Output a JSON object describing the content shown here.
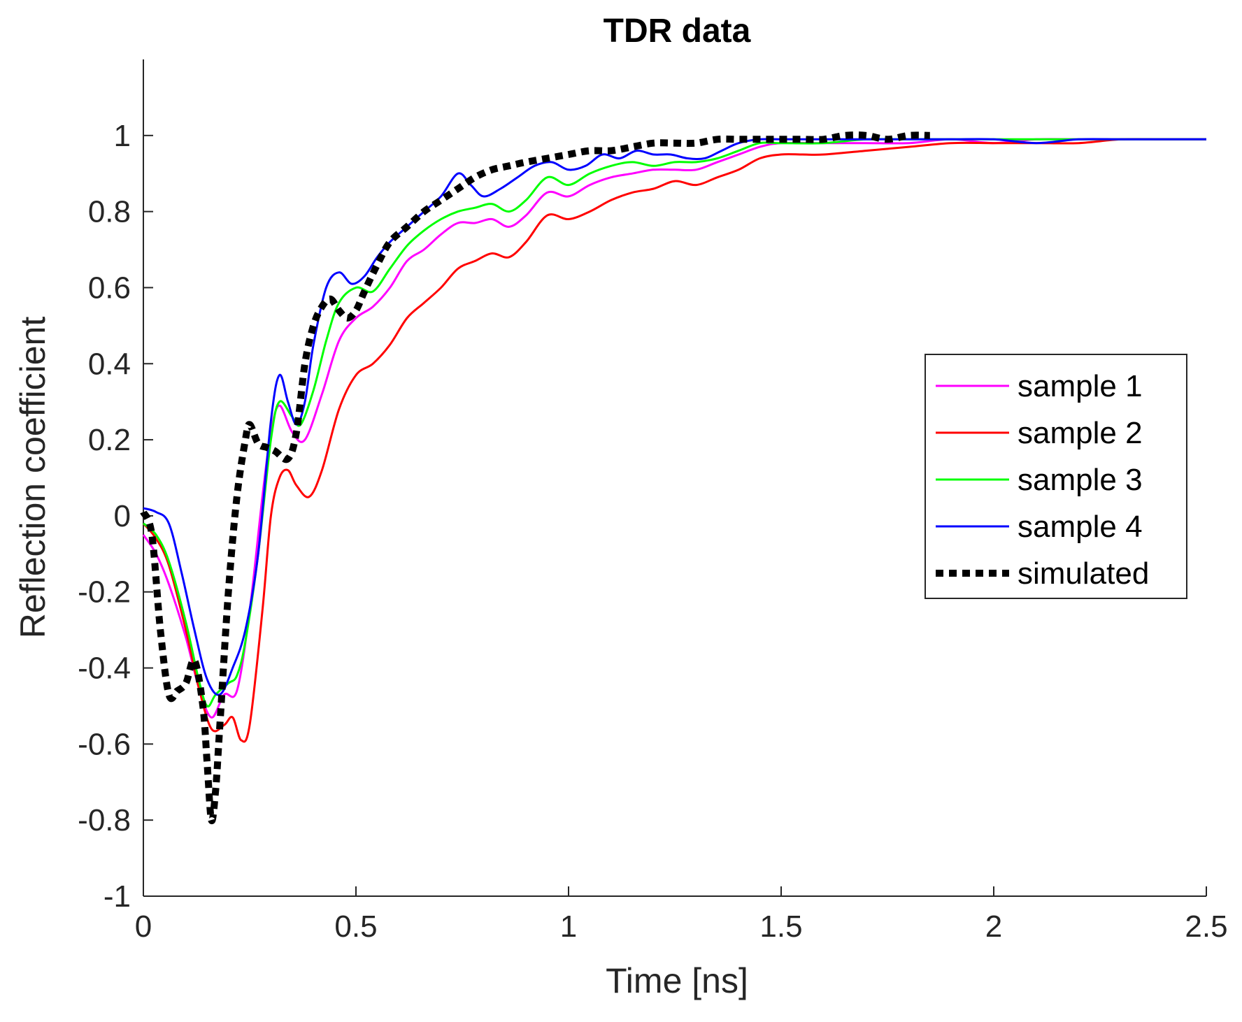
{
  "chart_data": {
    "type": "line",
    "title": "TDR data",
    "xlabel": "Time [ns]",
    "ylabel": "Reflection coefficient",
    "xlim": [
      0,
      2.5
    ],
    "ylim": [
      -1,
      1.2
    ],
    "xticks": [
      0,
      0.5,
      1,
      1.5,
      2,
      2.5
    ],
    "xtick_labels": [
      "0",
      "0.5",
      "1",
      "1.5",
      "2",
      "2.5"
    ],
    "yticks": [
      -1,
      -0.8,
      -0.6,
      -0.4,
      -0.2,
      0,
      0.2,
      0.4,
      0.6,
      0.8,
      1
    ],
    "ytick_labels": [
      "-1",
      "-0.8",
      "-0.6",
      "-0.4",
      "-0.2",
      "0",
      "0.2",
      "0.4",
      "0.6",
      "0.8",
      "1"
    ],
    "grid": false,
    "legend_position": "right",
    "series": [
      {
        "name": "sample 1",
        "color": "#ff00ff",
        "dash": "solid",
        "x": [
          0,
          0.03,
          0.06,
          0.1,
          0.13,
          0.16,
          0.19,
          0.22,
          0.25,
          0.28,
          0.3,
          0.32,
          0.35,
          0.38,
          0.42,
          0.46,
          0.5,
          0.54,
          0.58,
          0.62,
          0.66,
          0.7,
          0.74,
          0.78,
          0.82,
          0.86,
          0.9,
          0.95,
          1.0,
          1.05,
          1.1,
          1.15,
          1.2,
          1.25,
          1.3,
          1.35,
          1.4,
          1.45,
          1.5,
          1.6,
          1.7,
          1.8,
          1.9,
          2.0,
          2.1,
          2.2,
          2.3,
          2.4,
          2.5
        ],
        "y": [
          -0.05,
          -0.1,
          -0.18,
          -0.32,
          -0.45,
          -0.53,
          -0.47,
          -0.46,
          -0.25,
          0.05,
          0.22,
          0.29,
          0.22,
          0.2,
          0.32,
          0.46,
          0.52,
          0.55,
          0.6,
          0.67,
          0.7,
          0.74,
          0.77,
          0.77,
          0.78,
          0.76,
          0.79,
          0.85,
          0.84,
          0.87,
          0.89,
          0.9,
          0.91,
          0.91,
          0.91,
          0.93,
          0.95,
          0.97,
          0.98,
          0.98,
          0.98,
          0.98,
          0.99,
          0.98,
          0.99,
          0.99,
          0.99,
          0.99,
          0.99
        ]
      },
      {
        "name": "sample 2",
        "color": "#ff0000",
        "dash": "solid",
        "x": [
          0,
          0.03,
          0.06,
          0.1,
          0.13,
          0.16,
          0.19,
          0.21,
          0.23,
          0.25,
          0.28,
          0.3,
          0.32,
          0.34,
          0.36,
          0.39,
          0.42,
          0.46,
          0.5,
          0.54,
          0.58,
          0.62,
          0.66,
          0.7,
          0.74,
          0.78,
          0.82,
          0.86,
          0.9,
          0.95,
          1.0,
          1.05,
          1.1,
          1.15,
          1.2,
          1.25,
          1.3,
          1.35,
          1.4,
          1.45,
          1.5,
          1.55,
          1.6,
          1.7,
          1.8,
          1.9,
          2.0,
          2.1,
          2.2,
          2.3,
          2.4,
          2.5
        ],
        "y": [
          -0.02,
          -0.06,
          -0.13,
          -0.3,
          -0.45,
          -0.56,
          -0.55,
          -0.53,
          -0.59,
          -0.55,
          -0.25,
          0.0,
          0.1,
          0.12,
          0.08,
          0.05,
          0.12,
          0.28,
          0.37,
          0.4,
          0.45,
          0.52,
          0.56,
          0.6,
          0.65,
          0.67,
          0.69,
          0.68,
          0.72,
          0.79,
          0.78,
          0.8,
          0.83,
          0.85,
          0.86,
          0.88,
          0.87,
          0.89,
          0.91,
          0.94,
          0.95,
          0.95,
          0.95,
          0.96,
          0.97,
          0.98,
          0.98,
          0.98,
          0.98,
          0.99,
          0.99,
          0.99
        ]
      },
      {
        "name": "sample 3",
        "color": "#00ff00",
        "dash": "solid",
        "x": [
          0,
          0.03,
          0.06,
          0.1,
          0.13,
          0.15,
          0.17,
          0.2,
          0.22,
          0.24,
          0.27,
          0.3,
          0.32,
          0.35,
          0.37,
          0.4,
          0.43,
          0.46,
          0.5,
          0.54,
          0.58,
          0.62,
          0.66,
          0.7,
          0.74,
          0.78,
          0.82,
          0.86,
          0.9,
          0.95,
          1.0,
          1.05,
          1.1,
          1.15,
          1.2,
          1.25,
          1.3,
          1.35,
          1.4,
          1.45,
          1.5,
          1.6,
          1.7,
          1.8,
          1.9,
          2.0,
          2.1,
          2.2,
          2.3,
          2.4,
          2.5
        ],
        "y": [
          -0.02,
          -0.05,
          -0.12,
          -0.28,
          -0.43,
          -0.5,
          -0.47,
          -0.44,
          -0.42,
          -0.33,
          -0.1,
          0.2,
          0.3,
          0.26,
          0.24,
          0.33,
          0.46,
          0.56,
          0.6,
          0.59,
          0.65,
          0.71,
          0.75,
          0.78,
          0.8,
          0.81,
          0.82,
          0.8,
          0.83,
          0.89,
          0.87,
          0.9,
          0.92,
          0.93,
          0.92,
          0.93,
          0.93,
          0.94,
          0.96,
          0.98,
          0.98,
          0.98,
          0.99,
          0.99,
          0.99,
          0.99,
          0.99,
          0.99,
          0.99,
          0.99,
          0.99
        ]
      },
      {
        "name": "sample 4",
        "color": "#0000ff",
        "dash": "solid",
        "x": [
          0,
          0.03,
          0.06,
          0.09,
          0.12,
          0.15,
          0.18,
          0.21,
          0.24,
          0.27,
          0.3,
          0.32,
          0.34,
          0.36,
          0.38,
          0.4,
          0.43,
          0.46,
          0.49,
          0.52,
          0.55,
          0.58,
          0.62,
          0.66,
          0.7,
          0.74,
          0.77,
          0.8,
          0.84,
          0.88,
          0.92,
          0.96,
          1.0,
          1.04,
          1.08,
          1.12,
          1.16,
          1.2,
          1.24,
          1.28,
          1.32,
          1.36,
          1.4,
          1.45,
          1.5,
          1.6,
          1.7,
          1.8,
          1.9,
          2.0,
          2.1,
          2.2,
          2.3,
          2.4,
          2.5
        ],
        "y": [
          0.02,
          0.01,
          -0.02,
          -0.15,
          -0.3,
          -0.43,
          -0.47,
          -0.4,
          -0.3,
          -0.1,
          0.25,
          0.37,
          0.3,
          0.24,
          0.3,
          0.45,
          0.6,
          0.64,
          0.61,
          0.63,
          0.68,
          0.72,
          0.76,
          0.8,
          0.84,
          0.9,
          0.87,
          0.84,
          0.86,
          0.89,
          0.92,
          0.93,
          0.91,
          0.92,
          0.95,
          0.94,
          0.96,
          0.95,
          0.95,
          0.94,
          0.94,
          0.96,
          0.98,
          0.99,
          0.99,
          0.99,
          0.99,
          0.99,
          0.99,
          0.99,
          0.98,
          0.99,
          0.99,
          0.99,
          0.99
        ]
      },
      {
        "name": "simulated",
        "color": "#000000",
        "dash": "dotted",
        "x": [
          0,
          0.02,
          0.04,
          0.06,
          0.08,
          0.1,
          0.12,
          0.14,
          0.15,
          0.16,
          0.17,
          0.18,
          0.2,
          0.22,
          0.24,
          0.25,
          0.27,
          0.29,
          0.31,
          0.34,
          0.36,
          0.38,
          0.4,
          0.42,
          0.44,
          0.46,
          0.48,
          0.5,
          0.52,
          0.55,
          0.58,
          0.62,
          0.66,
          0.7,
          0.74,
          0.78,
          0.82,
          0.86,
          0.9,
          0.95,
          1.0,
          1.05,
          1.1,
          1.15,
          1.2,
          1.25,
          1.3,
          1.35,
          1.4,
          1.45,
          1.5,
          1.55,
          1.6,
          1.65,
          1.7,
          1.75,
          1.8,
          1.85
        ],
        "y": [
          0.01,
          -0.05,
          -0.3,
          -0.47,
          -0.46,
          -0.44,
          -0.38,
          -0.5,
          -0.65,
          -0.8,
          -0.72,
          -0.55,
          -0.2,
          0.05,
          0.2,
          0.24,
          0.19,
          0.18,
          0.17,
          0.15,
          0.22,
          0.4,
          0.5,
          0.55,
          0.57,
          0.54,
          0.52,
          0.54,
          0.59,
          0.66,
          0.72,
          0.76,
          0.8,
          0.83,
          0.86,
          0.89,
          0.91,
          0.92,
          0.93,
          0.94,
          0.95,
          0.96,
          0.96,
          0.97,
          0.98,
          0.98,
          0.98,
          0.99,
          0.99,
          0.99,
          0.99,
          0.99,
          0.99,
          1.0,
          1.0,
          0.99,
          1.0,
          1.0
        ]
      }
    ]
  }
}
